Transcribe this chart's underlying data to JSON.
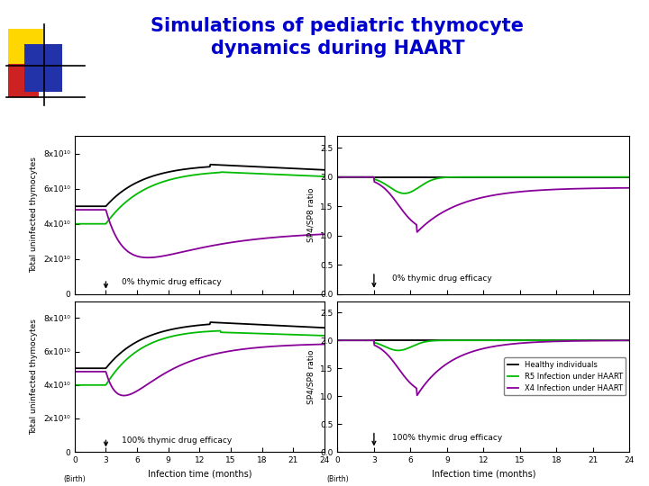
{
  "title_line1": "Simulations of pediatric thymocyte",
  "title_line2": "dynamics during HAART",
  "title_color": "#0000CC",
  "title_fontsize": 15,
  "panel_labels": [
    "0% thymic drug efficacy",
    "0% thymic drug efficacy",
    "100% thymic drug efficacy",
    "100% thymic drug efficacy"
  ],
  "colors": {
    "black": "#000000",
    "green": "#00BB00",
    "purple": "#880099"
  },
  "legend_labels": [
    "Healthy individuals",
    "R5 Infection under HAART",
    "X4 Infection under HAART"
  ],
  "x_ticks": [
    0,
    3,
    6,
    9,
    12,
    15,
    18,
    21,
    24
  ],
  "right_yticks": [
    0,
    0.5,
    1.0,
    1.5,
    2.0,
    2.5
  ],
  "left_yticks_labels": [
    "0",
    "2x10¹⁰",
    "4x10¹⁰",
    "6x10¹⁰",
    "8x10¹⁰"
  ],
  "left_yticks_values": [
    0,
    20000000000.0,
    40000000000.0,
    60000000000.0,
    80000000000.0
  ],
  "deco_yellow": "#FFD700",
  "deco_red": "#CC2222",
  "deco_blue": "#2233AA"
}
